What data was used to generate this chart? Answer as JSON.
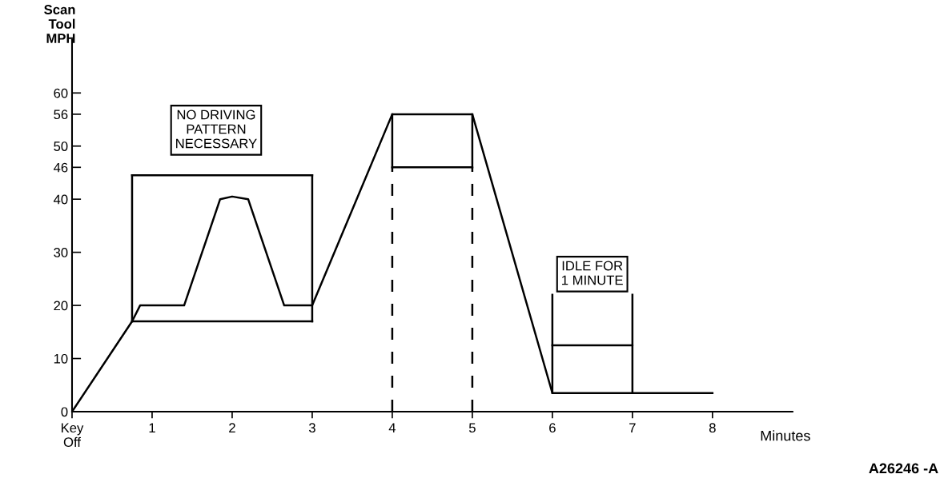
{
  "chart_data": {
    "type": "line",
    "xlabel": "Minutes",
    "ylabel": "Scan\nTool\nMPH",
    "xlim": [
      0,
      9
    ],
    "ylim": [
      0,
      70
    ],
    "xticks": [
      {
        "value": 0,
        "label": "Key\nOff"
      },
      1,
      2,
      3,
      4,
      5,
      6,
      7,
      8
    ],
    "yticks": [
      0,
      10,
      20,
      30,
      40,
      46,
      50,
      56,
      60
    ],
    "grid": false,
    "legend": false,
    "marker": "none",
    "series": [
      {
        "color": "#000000",
        "x": [
          0,
          0.75,
          0.85,
          1.4,
          1.85,
          2.0,
          2.2,
          2.65,
          3.0,
          4.0,
          5.0,
          6.0,
          8.0
        ],
        "values": [
          0,
          17,
          20,
          20,
          40,
          40.5,
          40,
          20,
          20,
          56,
          56,
          3.5,
          3.5
        ]
      },
      {
        "color": "#000000",
        "x": [
          0.75,
          3
        ],
        "values": [
          17,
          17
        ]
      },
      {
        "color": "#000000",
        "x": [
          0.75,
          3
        ],
        "values": [
          44.5,
          44.5
        ]
      },
      {
        "color": "#000000",
        "x": [
          0.75,
          0.75
        ],
        "values": [
          17,
          44.5
        ]
      },
      {
        "color": "#000000",
        "x": [
          3,
          3
        ],
        "values": [
          17,
          44.5
        ]
      },
      {
        "color": "#000000",
        "x": [
          4,
          5
        ],
        "values": [
          46,
          46
        ]
      },
      {
        "color": "#000000",
        "x": [
          4,
          4
        ],
        "values": [
          46,
          56
        ]
      },
      {
        "color": "#000000",
        "x": [
          5,
          5
        ],
        "values": [
          46,
          56
        ]
      },
      {
        "color": "#000000",
        "line_style": "dashed",
        "x": [
          4,
          4
        ],
        "values": [
          0,
          46
        ]
      },
      {
        "color": "#000000",
        "line_style": "dashed",
        "x": [
          5,
          5
        ],
        "values": [
          0,
          46
        ]
      },
      {
        "color": "#000000",
        "x": [
          6,
          6
        ],
        "values": [
          3.5,
          22
        ]
      },
      {
        "color": "#000000",
        "x": [
          7,
          7
        ],
        "values": [
          3.5,
          22
        ]
      },
      {
        "color": "#000000",
        "x": [
          6,
          7
        ],
        "values": [
          12.5,
          12.5
        ]
      }
    ],
    "annotations": [
      "NO DRIVING\nPATTERN\nNECESSARY",
      "IDLE FOR\n1 MINUTE",
      "A26246 -A"
    ]
  }
}
